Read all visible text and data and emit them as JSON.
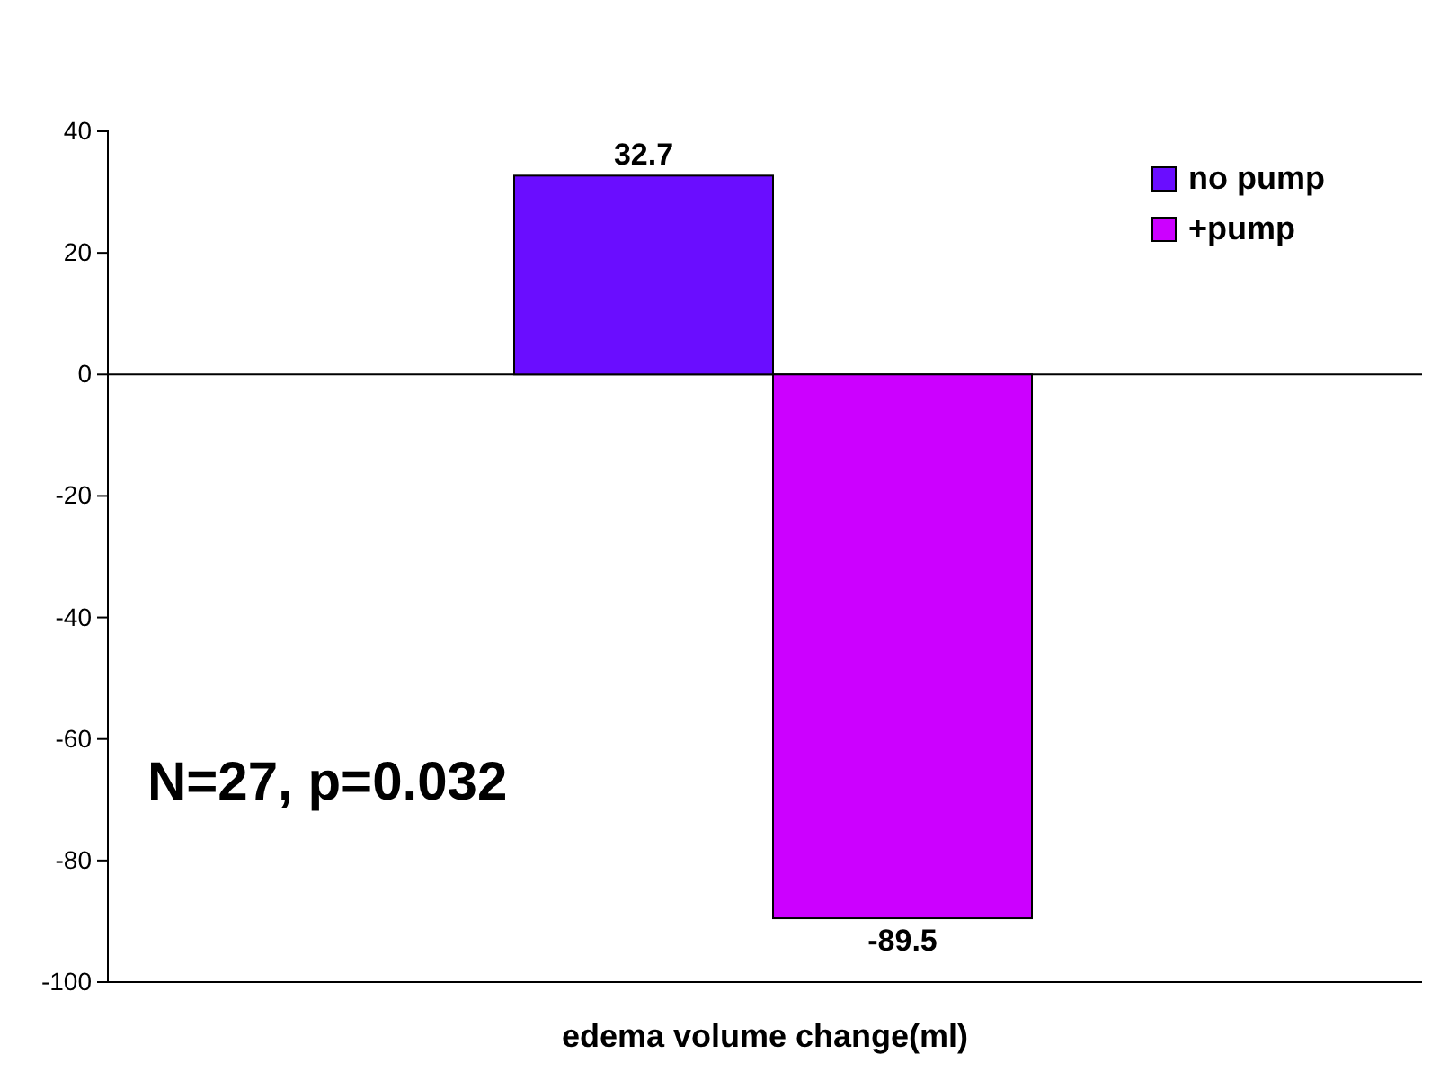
{
  "chart_data": {
    "type": "bar",
    "xlabel": "edema volume change(ml)",
    "categories": [
      null
    ],
    "series": [
      {
        "name": "no pump",
        "color": "#6a0dff",
        "values": [
          32.7
        ]
      },
      {
        "name": "+pump",
        "color": "#cc00ff",
        "values": [
          -89.5
        ]
      }
    ],
    "ylim": [
      -100,
      40
    ],
    "yticks": [
      -100,
      -80,
      -60,
      -40,
      -20,
      0,
      20,
      40
    ],
    "data_labels": true,
    "legend": "top right",
    "annotations": [
      "N=27, p=0.032"
    ]
  }
}
